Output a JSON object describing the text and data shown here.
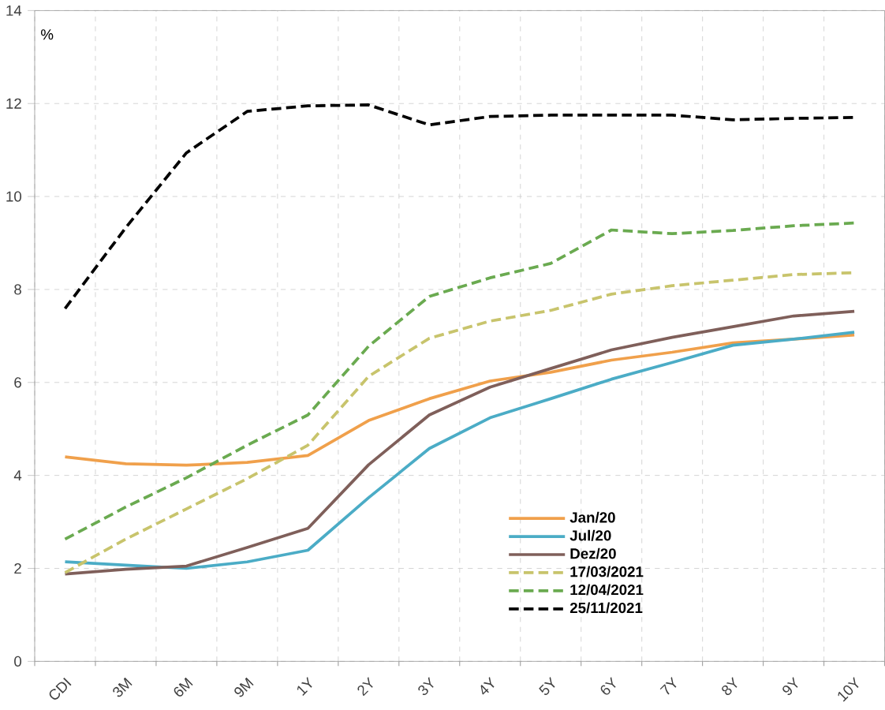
{
  "chart_data": {
    "type": "line",
    "ylabel": "%",
    "categories": [
      "CDI",
      "3M",
      "6M",
      "9M",
      "1Y",
      "2Y",
      "3Y",
      "4Y",
      "5Y",
      "6Y",
      "7Y",
      "8Y",
      "9Y",
      "10Y"
    ],
    "ylim": [
      0,
      14
    ],
    "yticks": [
      0,
      2,
      4,
      6,
      8,
      10,
      12,
      14
    ],
    "grid": true,
    "legend": "bottom right",
    "marker": "none",
    "series": [
      {
        "name": "Jan/20",
        "color": "#f0a04b",
        "line_style": "solid",
        "values": [
          4.4,
          4.25,
          4.22,
          4.28,
          4.43,
          5.18,
          5.65,
          6.03,
          6.22,
          6.48,
          6.65,
          6.85,
          6.93,
          7.02
        ]
      },
      {
        "name": "Jul/20",
        "color": "#4bacc6",
        "line_style": "solid",
        "values": [
          2.14,
          2.07,
          2.0,
          2.14,
          2.39,
          3.52,
          4.58,
          5.24,
          5.65,
          6.07,
          6.43,
          6.8,
          6.93,
          7.08
        ]
      },
      {
        "name": "Dez/20",
        "color": "#7f5f5a",
        "line_style": "solid",
        "values": [
          1.88,
          1.98,
          2.05,
          2.45,
          2.86,
          4.23,
          5.3,
          5.9,
          6.3,
          6.7,
          6.97,
          7.2,
          7.43,
          7.53
        ]
      },
      {
        "name": "17/03/2021",
        "color": "#c8c46c",
        "line_style": "dashed",
        "values": [
          1.91,
          2.63,
          3.28,
          3.93,
          4.65,
          6.13,
          6.95,
          7.32,
          7.55,
          7.9,
          8.08,
          8.2,
          8.32,
          8.36
        ]
      },
      {
        "name": "12/04/2021",
        "color": "#6aaa50",
        "line_style": "dashed",
        "values": [
          2.63,
          3.32,
          3.95,
          4.65,
          5.3,
          6.78,
          7.85,
          8.25,
          8.56,
          9.28,
          9.2,
          9.27,
          9.37,
          9.43
        ]
      },
      {
        "name": "25/11/2021",
        "color": "#000000",
        "line_style": "dashed",
        "values": [
          7.59,
          9.33,
          10.94,
          11.83,
          11.95,
          11.97,
          11.54,
          11.72,
          11.75,
          11.75,
          11.75,
          11.65,
          11.68,
          11.7
        ]
      }
    ]
  }
}
